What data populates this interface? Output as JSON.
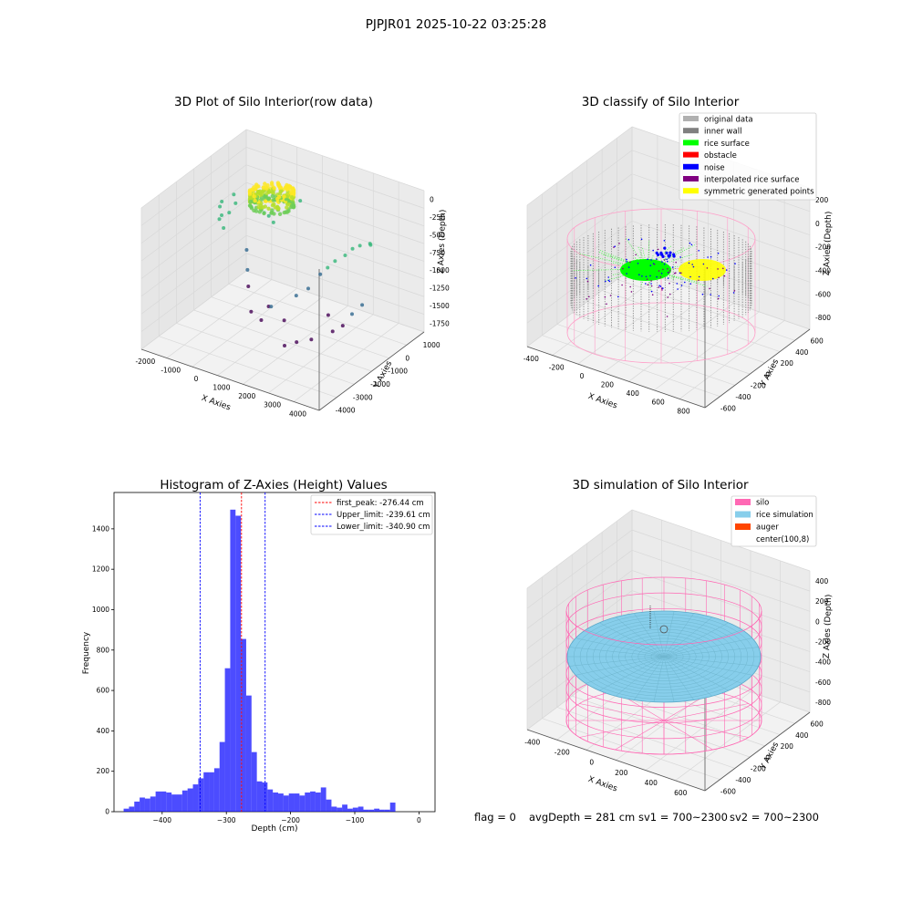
{
  "suptitle": "PJPJR01 2025-10-22 03:25:28",
  "footer": {
    "flag": "flag = 0",
    "avg": "avgDepth = 281 cm",
    "sv1": "sv1 = 700~2300",
    "sv2": "sv2 = 700~2300"
  },
  "chart_data": [
    {
      "type": "scatter",
      "title": "3D Plot of Silo Interior(row data)",
      "xlabel": "X Axies",
      "ylabel": "Y Axies",
      "zlabel": "Z Axies (Depth)",
      "x_ticks": [
        "-2000",
        "-1000",
        "0",
        "1000",
        "2000",
        "3000",
        "4000"
      ],
      "y_ticks": [
        "-4000",
        "-3000",
        "-2000",
        "-1000",
        "0",
        "1000"
      ],
      "z_ticks": [
        "0",
        "-250",
        "-500",
        "-750",
        "-1000",
        "-1250",
        "-1500",
        "-1750"
      ],
      "xlim": [
        -2000,
        4500
      ],
      "ylim": [
        -4000,
        1500
      ],
      "zlim": [
        -1900,
        100
      ],
      "colormap": [
        "#440154",
        "#31688e",
        "#35b779",
        "#fde725"
      ]
    },
    {
      "type": "scatter",
      "title": "3D classify of Silo Interior",
      "xlabel": "X Axies",
      "ylabel": "Y Axies",
      "zlabel": "Z Axies (Depth)",
      "x_ticks": [
        "-400",
        "-200",
        "0",
        "200",
        "400",
        "600",
        "800"
      ],
      "y_ticks": [
        "-600",
        "-400",
        "-200",
        "0",
        "200",
        "400",
        "600"
      ],
      "z_ticks": [
        "200",
        "0",
        "-200",
        "-400",
        "-600",
        "-800"
      ],
      "legend": [
        {
          "label": "original data",
          "color": "#b0b0b0"
        },
        {
          "label": "inner wall",
          "color": "#808080"
        },
        {
          "label": "rice surface",
          "color": "#00ff00"
        },
        {
          "label": "obstacle",
          "color": "#ff0000"
        },
        {
          "label": "noise",
          "color": "#0000ff"
        },
        {
          "label": "interpolated rice surface",
          "color": "#800080"
        },
        {
          "label": "symmetric generated points",
          "color": "#ffff00"
        }
      ],
      "legend_loc": "top-right"
    },
    {
      "type": "bar",
      "title": "Histogram of Z-Axies (Height) Values",
      "xlabel": "Depth (cm)",
      "ylabel": "Frequency",
      "xlim": [
        -475,
        25
      ],
      "ylim": [
        0,
        1580
      ],
      "x_ticks": [
        -400,
        -300,
        -200,
        -100,
        0
      ],
      "y_ticks": [
        0,
        200,
        400,
        600,
        800,
        1000,
        1200,
        1400
      ],
      "bin_start": -460,
      "bin_width": 8.3,
      "values": [
        15,
        25,
        50,
        70,
        65,
        75,
        100,
        100,
        95,
        85,
        85,
        105,
        115,
        135,
        165,
        195,
        195,
        215,
        345,
        710,
        1495,
        1465,
        855,
        575,
        295,
        150,
        145,
        110,
        95,
        90,
        80,
        90,
        90,
        80,
        95,
        100,
        95,
        120,
        60,
        25,
        20,
        35,
        15,
        20,
        25,
        10,
        10,
        15,
        10,
        10,
        45
      ],
      "bar_color": "#0000ff",
      "vlines": [
        {
          "x": -276.44,
          "label": "first_peak: -276.44 cm",
          "color": "#ff0000"
        },
        {
          "x": -239.61,
          "label": "Upper_limit: -239.61 cm",
          "color": "#0000ff"
        },
        {
          "x": -340.9,
          "label": "Lower_limit: -340.90 cm",
          "color": "#0000ff"
        }
      ],
      "legend_loc": "top-right"
    },
    {
      "type": "surface",
      "title": "3D simulation of Silo Interior",
      "xlabel": "X Axies",
      "ylabel": "Y Axies",
      "zlabel": "Z Axies (Depth)",
      "x_ticks": [
        "-400",
        "-200",
        "0",
        "200",
        "400",
        "600"
      ],
      "y_ticks": [
        "-600",
        "-400",
        "-200",
        "0",
        "200",
        "400",
        "600"
      ],
      "z_ticks": [
        "400",
        "200",
        "0",
        "-200",
        "-400",
        "-600",
        "-800"
      ],
      "legend": [
        {
          "label": "silo",
          "color": "#ff69b4"
        },
        {
          "label": "rice simulation",
          "color": "#87ceeb"
        },
        {
          "label": "auger",
          "color": "#ff4500"
        },
        {
          "label": "center(100,8)",
          "color": ""
        }
      ],
      "legend_loc": "top-right"
    }
  ]
}
